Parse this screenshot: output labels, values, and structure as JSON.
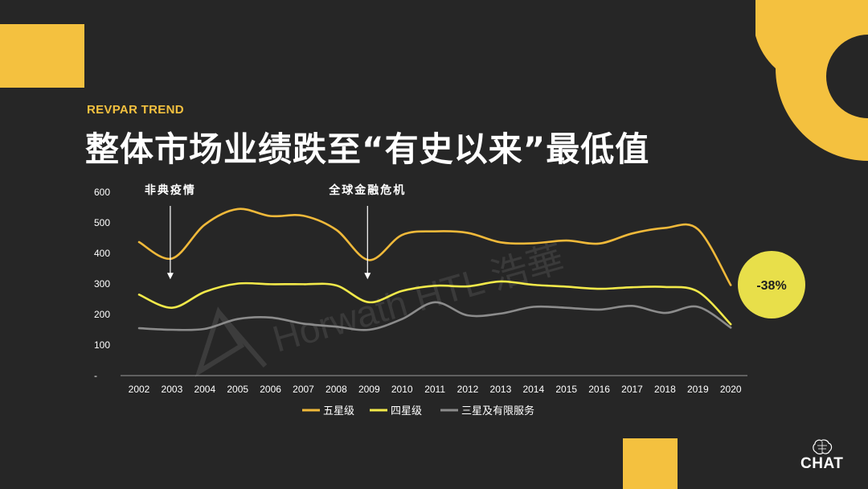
{
  "header": {
    "eyebrow": "REVPAR TREND",
    "title": "整体市场业绩跌至“有史以来”最低值"
  },
  "brand": {
    "name": "CHAT"
  },
  "watermark": {
    "text": "Horwath HTL 浩華"
  },
  "colors": {
    "background": "#262626",
    "accent": "#f4c13f",
    "five_star": "#f0b93a",
    "four_star": "#f2e94a",
    "three_star": "#8c8c8c"
  },
  "chart_data": {
    "type": "line",
    "categories": [
      "2002",
      "2003",
      "2004",
      "2005",
      "2006",
      "2007",
      "2008",
      "2009",
      "2010",
      "2011",
      "2012",
      "2013",
      "2014",
      "2015",
      "2016",
      "2017",
      "2018",
      "2019",
      "2020"
    ],
    "y_ticks": [
      "-",
      "100",
      "200",
      "300",
      "400",
      "500",
      "600"
    ],
    "ylim": [
      0,
      600
    ],
    "grid": false,
    "legend_position": "bottom",
    "series": [
      {
        "name": "五星级",
        "color": "#f0b93a",
        "values": [
          437,
          383,
          494,
          545,
          522,
          523,
          477,
          378,
          460,
          472,
          467,
          436,
          433,
          442,
          432,
          465,
          483,
          479,
          296
        ]
      },
      {
        "name": "四星级",
        "color": "#f2e94a",
        "values": [
          265,
          222,
          274,
          301,
          299,
          299,
          295,
          240,
          277,
          294,
          292,
          308,
          297,
          291,
          284,
          289,
          290,
          275,
          168
        ]
      },
      {
        "name": "三星及有限服务",
        "color": "#8c8c8c",
        "values": [
          155,
          150,
          153,
          185,
          190,
          170,
          160,
          150,
          185,
          240,
          197,
          203,
          225,
          222,
          216,
          228,
          205,
          225,
          157
        ]
      }
    ],
    "annotations": [
      {
        "text": "非典疫情",
        "x": "2003",
        "y": 315
      },
      {
        "text": "全球金融危机",
        "x": "2009",
        "y": 315
      }
    ],
    "callout": {
      "text": "-38%",
      "color": "#e8df4a"
    }
  }
}
